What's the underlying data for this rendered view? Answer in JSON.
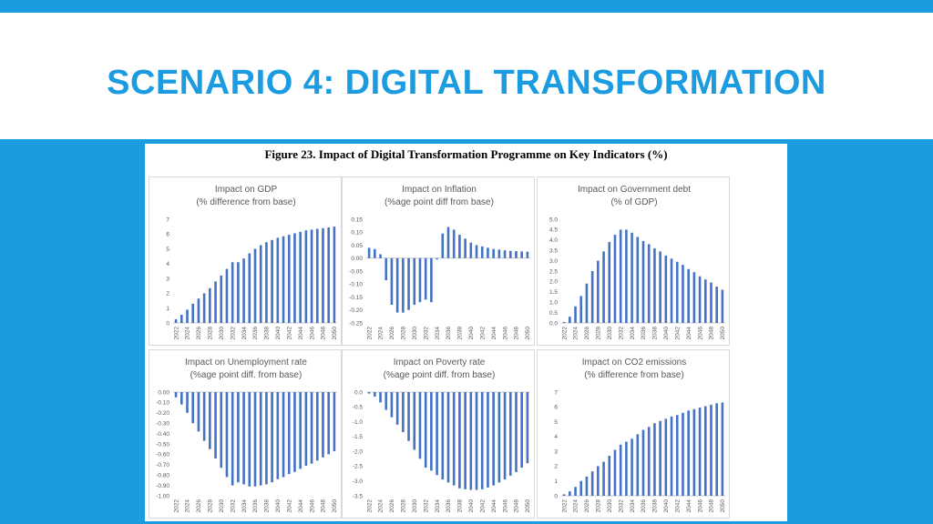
{
  "slide": {
    "title": "SCENARIO 4: DIGITAL TRANSFORMATION",
    "figure_caption": "Figure 23. Impact of Digital Transformation Programme on Key Indicators (%)"
  },
  "colors": {
    "bar": "#4472c4",
    "accent": "#1b9be0",
    "background": "#1b9be0"
  },
  "chart_data": [
    {
      "type": "bar",
      "title": "Impact on GDP",
      "subtitle": "(% difference from base)",
      "ylim": [
        0,
        7
      ],
      "yticks": [
        "0",
        "1",
        "2",
        "3",
        "4",
        "5",
        "6",
        "7"
      ],
      "x": [
        2022,
        2023,
        2024,
        2025,
        2026,
        2027,
        2028,
        2029,
        2030,
        2031,
        2032,
        2033,
        2034,
        2035,
        2036,
        2037,
        2038,
        2039,
        2040,
        2041,
        2042,
        2043,
        2044,
        2045,
        2046,
        2047,
        2048,
        2049,
        2050
      ],
      "xtick_labels": [
        "2022",
        "2024",
        "2026",
        "2028",
        "2030",
        "2032",
        "2034",
        "2036",
        "2038",
        "2040",
        "2042",
        "2044",
        "2046",
        "2048",
        "2050"
      ],
      "values": [
        0.25,
        0.55,
        0.9,
        1.3,
        1.65,
        2.0,
        2.35,
        2.8,
        3.2,
        3.65,
        4.1,
        4.1,
        4.35,
        4.7,
        5.0,
        5.25,
        5.45,
        5.6,
        5.75,
        5.85,
        5.95,
        6.05,
        6.15,
        6.25,
        6.3,
        6.35,
        6.4,
        6.45,
        6.5
      ],
      "grid": false,
      "legend": "none"
    },
    {
      "type": "bar",
      "title": "Impact on Inflation",
      "subtitle": "(%age point diff from base)",
      "ylim": [
        -0.25,
        0.15
      ],
      "yticks": [
        "-0.25",
        "-0.20",
        "-0.15",
        "-0.10",
        "-0.05",
        "0.00",
        "0.05",
        "0.10",
        "0.15"
      ],
      "x": [
        2022,
        2023,
        2024,
        2025,
        2026,
        2027,
        2028,
        2029,
        2030,
        2031,
        2032,
        2033,
        2034,
        2035,
        2036,
        2037,
        2038,
        2039,
        2040,
        2041,
        2042,
        2043,
        2044,
        2045,
        2046,
        2047,
        2048,
        2049,
        2050
      ],
      "xtick_labels": [
        "2022",
        "2024",
        "2026",
        "2028",
        "2030",
        "2032",
        "2034",
        "2036",
        "2038",
        "2040",
        "2042",
        "2044",
        "2046",
        "2048",
        "2050"
      ],
      "values": [
        0.04,
        0.035,
        0.015,
        -0.085,
        -0.18,
        -0.21,
        -0.21,
        -0.2,
        -0.18,
        -0.17,
        -0.16,
        -0.17,
        -0.005,
        0.095,
        0.12,
        0.11,
        0.09,
        0.075,
        0.06,
        0.05,
        0.045,
        0.04,
        0.035,
        0.033,
        0.03,
        0.028,
        0.027,
        0.026,
        0.025
      ],
      "grid": false,
      "legend": "none"
    },
    {
      "type": "bar",
      "title": "Impact on Government debt",
      "subtitle": "(% of GDP)",
      "ylim": [
        0,
        5
      ],
      "yticks": [
        "0.0",
        "0.5",
        "1.0",
        "1.5",
        "2.0",
        "2.5",
        "3.0",
        "3.5",
        "4.0",
        "4.5",
        "5.0"
      ],
      "x": [
        2022,
        2023,
        2024,
        2025,
        2026,
        2027,
        2028,
        2029,
        2030,
        2031,
        2032,
        2033,
        2034,
        2035,
        2036,
        2037,
        2038,
        2039,
        2040,
        2041,
        2042,
        2043,
        2044,
        2045,
        2046,
        2047,
        2048,
        2049,
        2050
      ],
      "xtick_labels": [
        "2022",
        "2024",
        "2026",
        "2028",
        "2030",
        "2032",
        "2034",
        "2036",
        "2038",
        "2040",
        "2042",
        "2044",
        "2046",
        "2048",
        "2050"
      ],
      "values": [
        0.05,
        0.3,
        0.8,
        1.3,
        1.9,
        2.5,
        3.0,
        3.45,
        3.9,
        4.25,
        4.5,
        4.5,
        4.35,
        4.15,
        3.95,
        3.8,
        3.6,
        3.45,
        3.25,
        3.1,
        2.95,
        2.8,
        2.6,
        2.45,
        2.25,
        2.1,
        1.95,
        1.75,
        1.6
      ],
      "grid": false,
      "legend": "none"
    },
    {
      "type": "bar",
      "title": "Impact on Unemployment rate",
      "subtitle": "(%age point diff. from base)",
      "ylim": [
        -1.0,
        0
      ],
      "yticks": [
        "-1.00",
        "-0.90",
        "-0.80",
        "-0.70",
        "-0.60",
        "-0.50",
        "-0.40",
        "-0.30",
        "-0.20",
        "-0.10",
        "0.00"
      ],
      "x": [
        2022,
        2023,
        2024,
        2025,
        2026,
        2027,
        2028,
        2029,
        2030,
        2031,
        2032,
        2033,
        2034,
        2035,
        2036,
        2037,
        2038,
        2039,
        2040,
        2041,
        2042,
        2043,
        2044,
        2045,
        2046,
        2047,
        2048,
        2049,
        2050
      ],
      "xtick_labels": [
        "2022",
        "2024",
        "2026",
        "2028",
        "2030",
        "2032",
        "2034",
        "2036",
        "2038",
        "2040",
        "2042",
        "2044",
        "2046",
        "2048",
        "2050"
      ],
      "values": [
        -0.05,
        -0.12,
        -0.2,
        -0.3,
        -0.38,
        -0.47,
        -0.55,
        -0.64,
        -0.73,
        -0.82,
        -0.9,
        -0.87,
        -0.89,
        -0.91,
        -0.91,
        -0.9,
        -0.89,
        -0.87,
        -0.84,
        -0.82,
        -0.79,
        -0.77,
        -0.74,
        -0.71,
        -0.69,
        -0.66,
        -0.63,
        -0.6,
        -0.57
      ],
      "grid": false,
      "legend": "none"
    },
    {
      "type": "bar",
      "title": "Impact on Poverty rate",
      "subtitle": "(%age point diff. from base)",
      "ylim": [
        -3.5,
        0
      ],
      "yticks": [
        "-3.5",
        "-3.0",
        "-2.5",
        "-2.0",
        "-1.5",
        "-1.0",
        "-0.5",
        "0.0"
      ],
      "x": [
        2022,
        2023,
        2024,
        2025,
        2026,
        2027,
        2028,
        2029,
        2030,
        2031,
        2032,
        2033,
        2034,
        2035,
        2036,
        2037,
        2038,
        2039,
        2040,
        2041,
        2042,
        2043,
        2044,
        2045,
        2046,
        2047,
        2048,
        2049,
        2050
      ],
      "xtick_labels": [
        "2022",
        "2024",
        "2026",
        "2028",
        "2030",
        "2032",
        "2034",
        "2036",
        "2038",
        "2040",
        "2042",
        "2044",
        "2046",
        "2048",
        "2050"
      ],
      "values": [
        -0.05,
        -0.15,
        -0.35,
        -0.6,
        -0.85,
        -1.1,
        -1.35,
        -1.65,
        -1.95,
        -2.25,
        -2.55,
        -2.65,
        -2.8,
        -2.95,
        -3.05,
        -3.15,
        -3.25,
        -3.28,
        -3.3,
        -3.3,
        -3.28,
        -3.22,
        -3.15,
        -3.05,
        -2.95,
        -2.82,
        -2.7,
        -2.55,
        -2.4
      ],
      "grid": false,
      "legend": "none"
    },
    {
      "type": "bar",
      "title": "Impact on CO2 emissions",
      "subtitle": "(% difference from base)",
      "ylim": [
        0,
        7
      ],
      "yticks": [
        "0",
        "1",
        "2",
        "3",
        "4",
        "5",
        "6",
        "7"
      ],
      "x": [
        2022,
        2023,
        2024,
        2025,
        2026,
        2027,
        2028,
        2029,
        2030,
        2031,
        2032,
        2033,
        2034,
        2035,
        2036,
        2037,
        2038,
        2039,
        2040,
        2041,
        2042,
        2043,
        2044,
        2045,
        2046,
        2047,
        2048,
        2049,
        2050
      ],
      "xtick_labels": [
        "2022",
        "2024",
        "2026",
        "2028",
        "2030",
        "2032",
        "2034",
        "2036",
        "2038",
        "2040",
        "2042",
        "2044",
        "2046",
        "2048",
        "2050"
      ],
      "values": [
        0.1,
        0.3,
        0.6,
        1.0,
        1.3,
        1.65,
        2.0,
        2.3,
        2.7,
        3.1,
        3.45,
        3.65,
        3.85,
        4.15,
        4.45,
        4.65,
        4.9,
        5.05,
        5.2,
        5.35,
        5.45,
        5.6,
        5.75,
        5.85,
        5.95,
        6.05,
        6.15,
        6.25,
        6.3
      ],
      "grid": false,
      "legend": "none"
    }
  ]
}
